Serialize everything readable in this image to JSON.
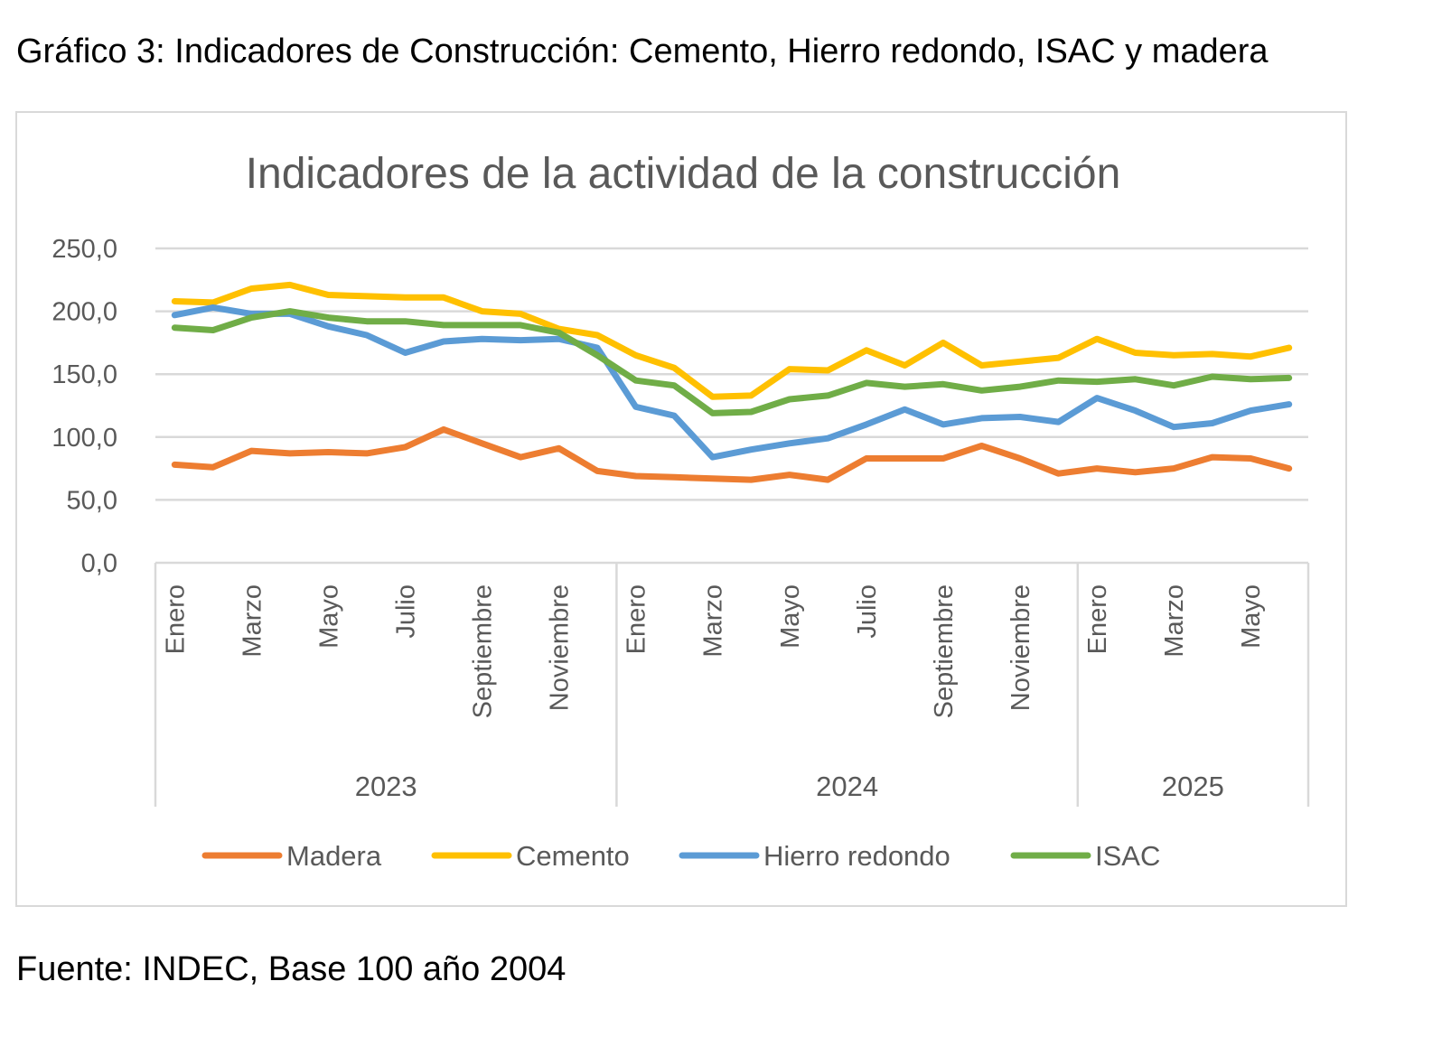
{
  "caption": "Gráfico 3: Indicadores de Construcción: Cemento, Hierro redondo, ISAC y madera",
  "source": "Fuente: INDEC, Base 100 año 2004",
  "chart_data": {
    "type": "line",
    "title": "Indicadores de la actividad de la construcción",
    "xlabel": "",
    "ylabel": "",
    "ylim": [
      0,
      250
    ],
    "yticks": [
      "0,0",
      "50,0",
      "100,0",
      "150,0",
      "200,0",
      "250,0"
    ],
    "ytick_values": [
      0,
      50,
      100,
      150,
      200,
      250
    ],
    "grid": true,
    "legend_position": "bottom",
    "x_tick_labels": [
      {
        "index": 0,
        "label": "Enero"
      },
      {
        "index": 2,
        "label": "Marzo"
      },
      {
        "index": 4,
        "label": "Mayo"
      },
      {
        "index": 6,
        "label": "Julio"
      },
      {
        "index": 8,
        "label": "Septiembre"
      },
      {
        "index": 10,
        "label": "Noviembre"
      },
      {
        "index": 12,
        "label": "Enero"
      },
      {
        "index": 14,
        "label": "Marzo"
      },
      {
        "index": 16,
        "label": "Mayo"
      },
      {
        "index": 18,
        "label": "Julio"
      },
      {
        "index": 20,
        "label": "Septiembre"
      },
      {
        "index": 22,
        "label": "Noviembre"
      },
      {
        "index": 24,
        "label": "Enero"
      },
      {
        "index": 26,
        "label": "Marzo"
      },
      {
        "index": 28,
        "label": "Mayo"
      }
    ],
    "years": [
      {
        "label": "2023",
        "start": 0,
        "count": 12
      },
      {
        "label": "2024",
        "start": 12,
        "count": 12
      },
      {
        "label": "2025",
        "start": 24,
        "count": 6
      }
    ],
    "series": [
      {
        "name": "Madera",
        "color": "#ed7d31",
        "values": [
          78,
          76,
          89,
          87,
          88,
          87,
          92,
          106,
          95,
          84,
          91,
          73,
          69,
          68,
          67,
          66,
          70,
          66,
          83,
          83,
          83,
          93,
          83,
          71,
          75,
          72,
          75,
          84,
          83,
          75
        ]
      },
      {
        "name": "Cemento",
        "color": "#ffc000",
        "values": [
          208,
          207,
          218,
          221,
          213,
          212,
          211,
          211,
          200,
          198,
          186,
          181,
          165,
          155,
          132,
          133,
          154,
          153,
          169,
          157,
          175,
          157,
          160,
          163,
          178,
          167,
          165,
          166,
          164,
          171
        ]
      },
      {
        "name": "Hierro redondo",
        "color": "#5b9bd5",
        "values": [
          197,
          203,
          198,
          198,
          188,
          181,
          167,
          176,
          178,
          177,
          178,
          171,
          124,
          117,
          84,
          90,
          95,
          99,
          110,
          122,
          110,
          115,
          116,
          112,
          131,
          121,
          108,
          111,
          121,
          126
        ]
      },
      {
        "name": "ISAC",
        "color": "#70ad47",
        "values": [
          187,
          185,
          195,
          200,
          195,
          192,
          192,
          189,
          189,
          189,
          183,
          165,
          145,
          141,
          119,
          120,
          130,
          133,
          143,
          140,
          142,
          137,
          140,
          145,
          144,
          146,
          141,
          148,
          146,
          147
        ]
      }
    ]
  }
}
